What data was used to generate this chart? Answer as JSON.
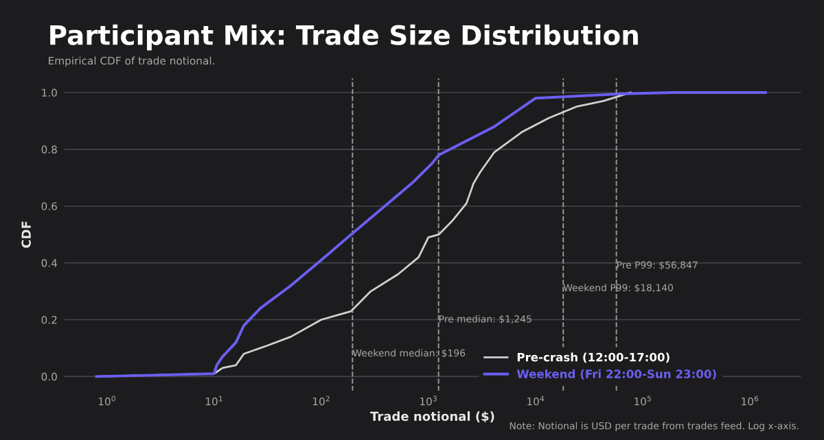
{
  "chart_data": {
    "type": "line",
    "title": "Participant Mix: Trade Size Distribution",
    "subtitle": "Empirical CDF of trade notional.",
    "xlabel": "Trade notional ($)",
    "ylabel": "CDF",
    "log": "x",
    "xlim": [
      0.4,
      3000000
    ],
    "xticks": [
      {
        "value": 1,
        "label": "10$^{0}$"
      },
      {
        "value": 10,
        "label": "10$^{1}$"
      },
      {
        "value": 100,
        "label": "10$^{2}$"
      },
      {
        "value": 1000,
        "label": "10$^{3}$"
      },
      {
        "value": 10000,
        "label": "10$^{4}$"
      },
      {
        "value": 100000,
        "label": "10$^{5}$"
      },
      {
        "value": 1000000,
        "label": "10$^{6}$"
      }
    ],
    "ylim": [
      -0.05,
      1.05
    ],
    "yticks": [
      {
        "value": 0,
        "label": "0.0"
      },
      {
        "value": 0.2,
        "label": "0.2"
      },
      {
        "value": 0.4,
        "label": "0.4"
      },
      {
        "value": 0.6,
        "label": "0.6"
      },
      {
        "value": 0.8,
        "label": "0.8"
      },
      {
        "value": 1,
        "label": "1.0"
      }
    ],
    "grid": "y",
    "legend": "bottom right",
    "line_style": "solid",
    "series": [
      {
        "name": "Pre-crash (12:00-17:00)",
        "color": "#d0d0d0",
        "x": [
          0.8,
          10,
          12,
          16,
          19,
          32,
          52,
          100,
          190,
          290,
          520,
          810,
          1000,
          1250,
          1690,
          2270,
          2640,
          3050,
          4130,
          7400,
          13300,
          24000,
          43000,
          77000
        ],
        "values": [
          0,
          0.01,
          0.03,
          0.04,
          0.08,
          0.11,
          0.14,
          0.2,
          0.23,
          0.3,
          0.36,
          0.42,
          0.49,
          0.5,
          0.55,
          0.61,
          0.68,
          0.72,
          0.79,
          0.86,
          0.91,
          0.95,
          0.97,
          1
        ]
      },
      {
        "name": "Weekend (Fri 22:00-Sun 23:00)",
        "color": "#6b5ff0",
        "x": [
          0.8,
          10,
          10.6,
          12,
          16,
          19,
          27,
          52,
          100,
          190,
          700,
          1080,
          1250,
          2270,
          4130,
          10000,
          60000,
          190000,
          1400000
        ],
        "values": [
          0,
          0.01,
          0.04,
          0.07,
          0.12,
          0.18,
          0.24,
          0.32,
          0.41,
          0.5,
          0.68,
          0.75,
          0.78,
          0.83,
          0.88,
          0.98,
          0.995,
          1,
          1
        ]
      }
    ],
    "ref_lines": [
      {
        "axis": "x",
        "value": 196,
        "label": "Weekend median: $196",
        "color": "#9a9a9a",
        "line_style": "dashed"
      },
      {
        "axis": "x",
        "value": 1245,
        "label": "Pre median: $1,245",
        "color": "#9a9a9a",
        "line_style": "dashed"
      },
      {
        "axis": "x",
        "value": 18140,
        "label": "Weekend P99: $18,140",
        "color": "#9a9a9a",
        "line_style": "dashed"
      },
      {
        "axis": "x",
        "value": 56847,
        "label": "Pre P99: $56,847",
        "color": "#9a9a9a",
        "line_style": "dashed"
      }
    ],
    "annotations": [
      "Note: Notional is USD per trade from trades feed. Log x-axis."
    ]
  }
}
